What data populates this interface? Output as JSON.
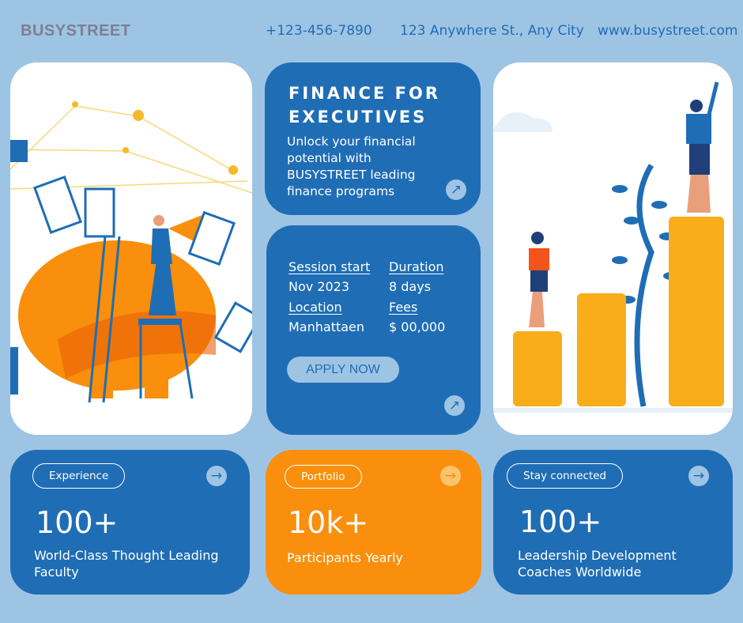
{
  "header": {
    "brand": "BUSYSTREET",
    "phone": "+123-456-7890",
    "address": "123 Anywhere St., Any City",
    "website": "www.busystreet.com"
  },
  "hero": {
    "title": "FINANCE FOR EXECUTIVES",
    "subtitle": "Unlock your financial potential with BUSYSTREET leading finance programs",
    "arrow_icon": "arrow-up-right"
  },
  "details": {
    "session_label": "Session start",
    "session_value": "Nov 2023",
    "duration_label": "Duration",
    "duration_value": "8 days",
    "location_label": "Location",
    "location_value": "Manhattaen",
    "fees_label": "Fees",
    "fees_value": "$ 00,000",
    "apply_label": "APPLY NOW"
  },
  "stats": [
    {
      "pill": "Experience",
      "value": "100+",
      "desc": "World-Class Thought Leading\n Faculty"
    },
    {
      "pill": "Portfolio",
      "value": "10k+",
      "desc": "Participants Yearly"
    },
    {
      "pill": "Stay connected",
      "value": "100+",
      "desc": "Leadership Development Coaches Worldwide"
    }
  ],
  "colors": {
    "background": "#9ec4e4",
    "blue": "#1f6db5",
    "orange": "#f98f0c"
  }
}
